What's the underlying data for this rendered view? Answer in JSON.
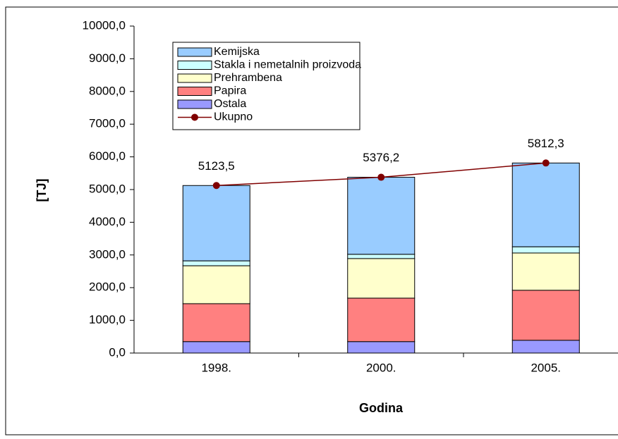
{
  "chart_data": {
    "type": "bar",
    "stacked": true,
    "categories": [
      "1998.",
      "2000.",
      "2005."
    ],
    "series": [
      {
        "name": "Kemijska",
        "color": "#99ccff",
        "values": [
          2303.5,
          2356.2,
          2562.3
        ]
      },
      {
        "name": "Stakla i nemetalnih proizvoda",
        "color": "#ccffff",
        "values": [
          150,
          130,
          190
        ]
      },
      {
        "name": "Prehrambena",
        "color": "#ffffcc",
        "values": [
          1160,
          1210,
          1140
        ]
      },
      {
        "name": "Papira",
        "color": "#ff8080",
        "values": [
          1160,
          1330,
          1530
        ]
      },
      {
        "name": "Ostala",
        "color": "#9999ff",
        "values": [
          350,
          350,
          390
        ]
      },
      {
        "name": "Ukupno",
        "color": "#800000",
        "type": "line",
        "values": [
          5123.5,
          5376.2,
          5812.3
        ],
        "value_labels": [
          "5123,5",
          "5376,2",
          "5812,3"
        ]
      }
    ],
    "ylim": [
      0,
      10000
    ],
    "yticks": [
      {
        "value": 0,
        "label": "0,0"
      },
      {
        "value": 1000,
        "label": "1000,0"
      },
      {
        "value": 2000,
        "label": "2000,0"
      },
      {
        "value": 3000,
        "label": "3000,0"
      },
      {
        "value": 4000,
        "label": "4000,0"
      },
      {
        "value": 5000,
        "label": "5000,0"
      },
      {
        "value": 6000,
        "label": "6000,0"
      },
      {
        "value": 7000,
        "label": "7000,0"
      },
      {
        "value": 8000,
        "label": "8000,0"
      },
      {
        "value": 9000,
        "label": "9000,0"
      },
      {
        "value": 10000,
        "label": "10000,0"
      }
    ],
    "ylabel": "[TJ]",
    "xlabel": "Godina",
    "grid": false,
    "legend": "top-left"
  }
}
